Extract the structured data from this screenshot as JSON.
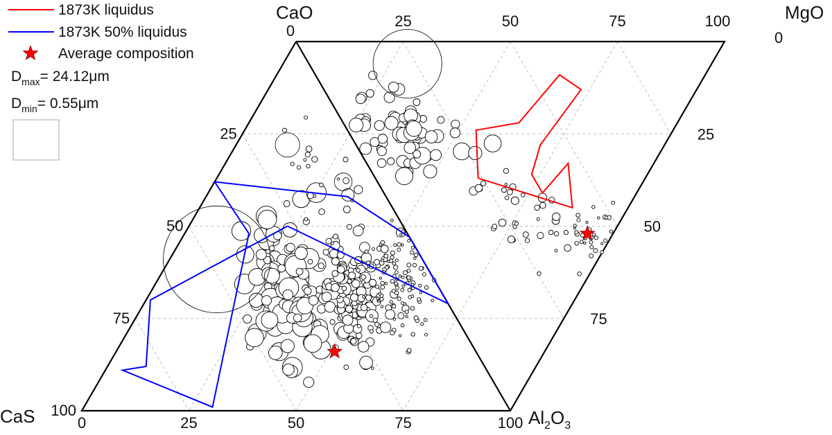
{
  "chart_data": {
    "type": "scatter",
    "subtype": "ternary-diagram-pair",
    "triangles": [
      {
        "name": "CaO-CaS-Al2O3",
        "vertices": [
          "CaO",
          "CaS",
          "Al2O3"
        ],
        "bottom_axis_ticks": [
          "0",
          "25",
          "50",
          "75",
          "100"
        ],
        "left_axis_ticks": [
          "0",
          "25",
          "50",
          "75",
          "100"
        ]
      },
      {
        "name": "CaO-MgO-Al2O3",
        "vertices": [
          "CaO",
          "MgO",
          "Al2O3"
        ],
        "top_axis_ticks": [
          "25",
          "50",
          "75",
          "100"
        ],
        "right_axis_ticks": [
          "0",
          "25",
          "50",
          "75"
        ]
      }
    ],
    "corner_labels": {
      "cao": "CaO",
      "cas": "CaS",
      "mgo": "MgO",
      "al2o3_main": "Al",
      "al2o3_sub": "2",
      "al2o3_tail": "O",
      "al2o3_sub2": "3"
    },
    "legend": {
      "placement": "top-left",
      "liquidus": {
        "label": "1873K liquidus",
        "color": "#ff0000"
      },
      "liquidus50": {
        "label": "1873K 50% liquidus",
        "color": "#0000ff"
      },
      "avg": {
        "label": "Average composition",
        "color": "#ff0000"
      },
      "dmax_main": "D",
      "dmax_sub": "max",
      "dmax_value": "= 24.12μm",
      "dmin_main": "D",
      "dmin_sub": "min",
      "dmin_value": "= 0.55μm"
    },
    "average_compositions": [
      {
        "triangle": "CaO-CaS-Al2O3",
        "CaS": 33,
        "Al2O3": 51,
        "CaO": 16
      },
      {
        "triangle": "CaO-MgO-Al2O3",
        "MgO": 42,
        "Al2O3": 52,
        "CaO": 6
      }
    ],
    "liquidus_1873K": {
      "triangle": "CaO-MgO-Al2O3",
      "points_MgO_Al2O3": [
        [
          24,
          37
        ],
        [
          30,
          24
        ],
        [
          41,
          22
        ],
        [
          57,
          9
        ],
        [
          60,
          13
        ],
        [
          43,
          28
        ],
        [
          37,
          36
        ],
        [
          37,
          41
        ],
        [
          47,
          33
        ],
        [
          42,
          45
        ],
        [
          24,
          37
        ]
      ]
    },
    "liquidus_1873K_50pct": {
      "points_CaS_Al2O3": [
        [
          27,
          23
        ],
        [
          69,
          1
        ],
        [
          79,
          9
        ],
        [
          85,
          4
        ],
        [
          69,
          30
        ],
        [
          37,
          15
        ],
        [
          38,
          0
        ],
        [
          9,
          33
        ],
        [
          0,
          53
        ],
        [
          0,
          71
        ],
        [
          27,
          23
        ]
      ]
    },
    "particles": {
      "max_diameter_um": 24.12,
      "min_diameter_um": 0.55,
      "cluster_CaS_side": [
        {
          "CaS": 36,
          "Al2O3": 28,
          "n": 50,
          "size_um": [
            1.5,
            5
          ]
        },
        {
          "CaS": 38,
          "Al2O3": 34,
          "n": 60,
          "size_um": [
            1.5,
            5
          ]
        },
        {
          "CaS": 20,
          "Al2O3": 50,
          "n": 90,
          "size_um": [
            1,
            3
          ]
        },
        {
          "CaS": 22,
          "Al2O3": 46,
          "n": 40,
          "size_um": [
            1,
            2.5
          ]
        },
        {
          "CaS": 20,
          "Al2O3": 40,
          "n": 20,
          "size_um": [
            1,
            2
          ]
        },
        {
          "CaS": 17,
          "Al2O3": 20,
          "n": 20,
          "size_um": [
            0.5,
            1.5
          ]
        },
        {
          "CaS": 10,
          "Al2O3": 55,
          "n": 130,
          "size_um": [
            0.5,
            1
          ]
        }
      ],
      "cluster_MgO_side": [
        {
          "MgO": 12,
          "Al2O3": 24,
          "n": 35,
          "size_um": [
            1.5,
            3
          ]
        },
        {
          "MgO": 15,
          "Al2O3": 24,
          "n": 30,
          "size_um": [
            1.5,
            4
          ]
        },
        {
          "MgO": 30,
          "Al2O3": 48,
          "n": 35,
          "size_um": [
            0.5,
            2
          ]
        },
        {
          "MgO": 45,
          "Al2O3": 55,
          "n": 70,
          "size_um": [
            0.5,
            1
          ]
        }
      ],
      "large": [
        {
          "CaS": 48,
          "Al2O3": 11,
          "size_um": 24.12
        },
        {
          "MgO": 23,
          "Al2O3": 6,
          "size_um": 15.5
        },
        {
          "CaS": 16,
          "Al2O3": 12,
          "size_um": 5.5
        },
        {
          "CaS": 8,
          "Al2O3": 30,
          "size_um": 4
        }
      ]
    }
  }
}
